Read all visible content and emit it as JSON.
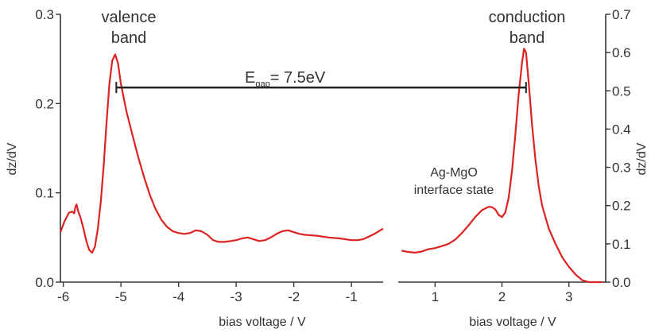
{
  "chart_data": {
    "type": "line",
    "series_color": "#dd2222",
    "panels": [
      {
        "id": "left",
        "xlabel": "bias voltage / V",
        "ylabel": "dz/dV",
        "xlim": [
          -6.05,
          -0.45
        ],
        "ylim": [
          0.0,
          0.3
        ],
        "xticks": [
          "-6",
          "-5",
          "-4",
          "-3",
          "-2",
          "-1"
        ],
        "xtick_values": [
          -6,
          -5,
          -4,
          -3,
          -2,
          -1
        ],
        "yticks": [
          "0.0",
          "0.1",
          "0.2",
          "0.3"
        ],
        "ytick_values": [
          0.0,
          0.1,
          0.2,
          0.3
        ],
        "points": [
          [
            -6.05,
            0.056
          ],
          [
            -5.98,
            0.068
          ],
          [
            -5.9,
            0.078
          ],
          [
            -5.84,
            0.079
          ],
          [
            -5.81,
            0.077
          ],
          [
            -5.79,
            0.084
          ],
          [
            -5.77,
            0.087
          ],
          [
            -5.74,
            0.079
          ],
          [
            -5.7,
            0.072
          ],
          [
            -5.65,
            0.06
          ],
          [
            -5.6,
            0.046
          ],
          [
            -5.55,
            0.036
          ],
          [
            -5.5,
            0.033
          ],
          [
            -5.45,
            0.04
          ],
          [
            -5.4,
            0.06
          ],
          [
            -5.35,
            0.09
          ],
          [
            -5.3,
            0.13
          ],
          [
            -5.25,
            0.178
          ],
          [
            -5.2,
            0.222
          ],
          [
            -5.15,
            0.248
          ],
          [
            -5.1,
            0.255
          ],
          [
            -5.05,
            0.245
          ],
          [
            -5.0,
            0.222
          ],
          [
            -4.9,
            0.19
          ],
          [
            -4.8,
            0.165
          ],
          [
            -4.7,
            0.14
          ],
          [
            -4.6,
            0.118
          ],
          [
            -4.5,
            0.098
          ],
          [
            -4.4,
            0.082
          ],
          [
            -4.3,
            0.07
          ],
          [
            -4.2,
            0.062
          ],
          [
            -4.1,
            0.057
          ],
          [
            -4.0,
            0.055
          ],
          [
            -3.9,
            0.054
          ],
          [
            -3.8,
            0.055
          ],
          [
            -3.7,
            0.058
          ],
          [
            -3.6,
            0.057
          ],
          [
            -3.5,
            0.053
          ],
          [
            -3.4,
            0.047
          ],
          [
            -3.3,
            0.045
          ],
          [
            -3.2,
            0.045
          ],
          [
            -3.1,
            0.046
          ],
          [
            -3.0,
            0.047
          ],
          [
            -2.9,
            0.049
          ],
          [
            -2.8,
            0.05
          ],
          [
            -2.7,
            0.048
          ],
          [
            -2.6,
            0.046
          ],
          [
            -2.5,
            0.047
          ],
          [
            -2.4,
            0.05
          ],
          [
            -2.3,
            0.054
          ],
          [
            -2.2,
            0.057
          ],
          [
            -2.1,
            0.058
          ],
          [
            -2.0,
            0.056
          ],
          [
            -1.9,
            0.054
          ],
          [
            -1.8,
            0.053
          ],
          [
            -1.6,
            0.052
          ],
          [
            -1.4,
            0.05
          ],
          [
            -1.2,
            0.049
          ],
          [
            -1.0,
            0.047
          ],
          [
            -0.9,
            0.047
          ],
          [
            -0.8,
            0.048
          ],
          [
            -0.7,
            0.051
          ],
          [
            -0.6,
            0.054
          ],
          [
            -0.5,
            0.058
          ],
          [
            -0.45,
            0.06
          ]
        ]
      },
      {
        "id": "right",
        "xlabel": "bias voltage / V",
        "ylabel": "dz/dV",
        "xlim": [
          0.45,
          3.55
        ],
        "ylim": [
          0.0,
          0.7
        ],
        "xticks": [
          "1",
          "2",
          "3"
        ],
        "xtick_values": [
          1,
          2,
          3
        ],
        "yticks": [
          "0.0",
          "0.1",
          "0.2",
          "0.3",
          "0.4",
          "0.5",
          "0.6",
          "0.7"
        ],
        "ytick_values": [
          0.0,
          0.1,
          0.2,
          0.3,
          0.4,
          0.5,
          0.6,
          0.7
        ],
        "points": [
          [
            0.5,
            0.082
          ],
          [
            0.6,
            0.079
          ],
          [
            0.7,
            0.077
          ],
          [
            0.8,
            0.08
          ],
          [
            0.9,
            0.086
          ],
          [
            1.0,
            0.089
          ],
          [
            1.1,
            0.094
          ],
          [
            1.2,
            0.1
          ],
          [
            1.3,
            0.111
          ],
          [
            1.4,
            0.128
          ],
          [
            1.5,
            0.148
          ],
          [
            1.6,
            0.17
          ],
          [
            1.7,
            0.188
          ],
          [
            1.8,
            0.197
          ],
          [
            1.85,
            0.196
          ],
          [
            1.9,
            0.19
          ],
          [
            1.95,
            0.176
          ],
          [
            2.0,
            0.17
          ],
          [
            2.05,
            0.182
          ],
          [
            2.1,
            0.22
          ],
          [
            2.15,
            0.29
          ],
          [
            2.2,
            0.385
          ],
          [
            2.25,
            0.49
          ],
          [
            2.3,
            0.575
          ],
          [
            2.33,
            0.61
          ],
          [
            2.36,
            0.6
          ],
          [
            2.4,
            0.52
          ],
          [
            2.45,
            0.41
          ],
          [
            2.5,
            0.32
          ],
          [
            2.55,
            0.25
          ],
          [
            2.6,
            0.2
          ],
          [
            2.7,
            0.14
          ],
          [
            2.8,
            0.1
          ],
          [
            2.9,
            0.065
          ],
          [
            3.0,
            0.04
          ],
          [
            3.1,
            0.02
          ],
          [
            3.2,
            0.005
          ],
          [
            3.3,
            0.0
          ],
          [
            3.4,
            0.0
          ],
          [
            3.5,
            0.0
          ]
        ]
      }
    ],
    "annotations": {
      "valence": [
        "valence",
        "band"
      ],
      "conduction": [
        "conduction",
        "band"
      ],
      "gap_main": "E",
      "gap_sub": "gap",
      "gap_value": "= 7.5eV",
      "interface": [
        "Ag-MgO",
        "interface state"
      ]
    },
    "gap_bar": {
      "from_x": -5.08,
      "to_x": 2.36,
      "y_left_axis": 0.218
    }
  }
}
